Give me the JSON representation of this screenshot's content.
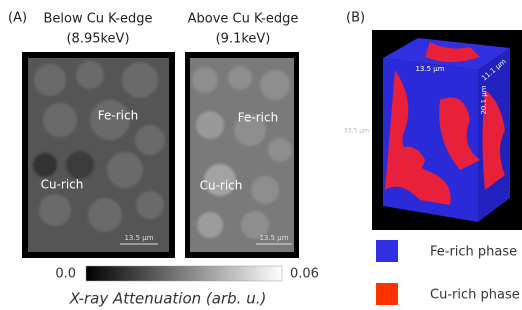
{
  "panel_a": {
    "label": "(A)",
    "left_image": {
      "title": "Below Cu K-edge",
      "subtitle": "(8.95keV)",
      "fe_label": "Fe-rich",
      "cu_label": "Cu-rich",
      "scale_bar": "13.5 μm"
    },
    "right_image": {
      "title": "Above Cu K-edge",
      "subtitle": "(9.1keV)",
      "fe_label": "Fe-rich",
      "cu_label": "Cu-rich",
      "scale_bar": "13.5 μm"
    },
    "colorbar": {
      "min_label": "0.0",
      "max_label": "0.06",
      "title": "X-ray Attenuation (arb. u.)"
    }
  },
  "panel_b": {
    "label": "(B)",
    "dimensions": {
      "width": "13.5 µm",
      "depth": "11.1 µm",
      "height": "20.1 µm",
      "side": "33.5 µm"
    },
    "legend": [
      {
        "label": "Fe-rich phase",
        "color": "#3030e0"
      },
      {
        "label": "Cu-rich phase",
        "color": "#ff3300"
      }
    ]
  }
}
